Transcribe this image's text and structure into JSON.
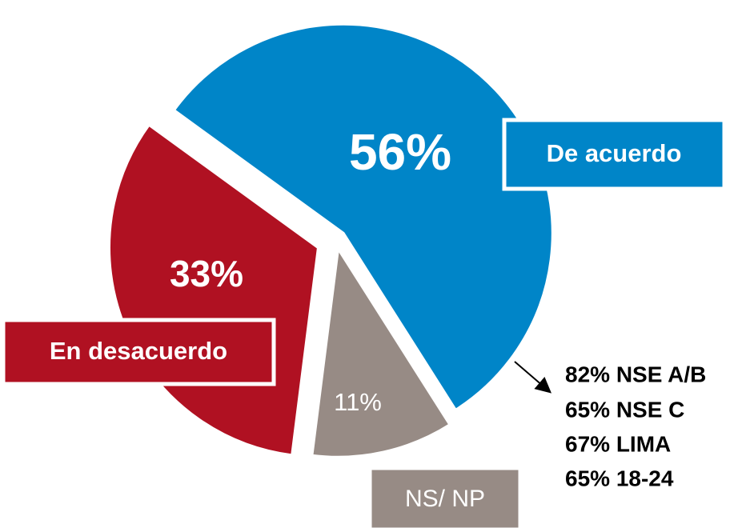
{
  "chart_data": {
    "type": "pie",
    "categories": [
      "De acuerdo",
      "NS/ NP",
      "En desacuerdo"
    ],
    "values": [
      56,
      11,
      33
    ],
    "value_labels": [
      "56%",
      "11%",
      "33%"
    ],
    "colors": [
      "#0085c8",
      "#978b85",
      "#b01122"
    ],
    "annotations": [
      "82% NSE A/B",
      "65% NSE C",
      "67% LIMA",
      "65% 18-24"
    ]
  }
}
